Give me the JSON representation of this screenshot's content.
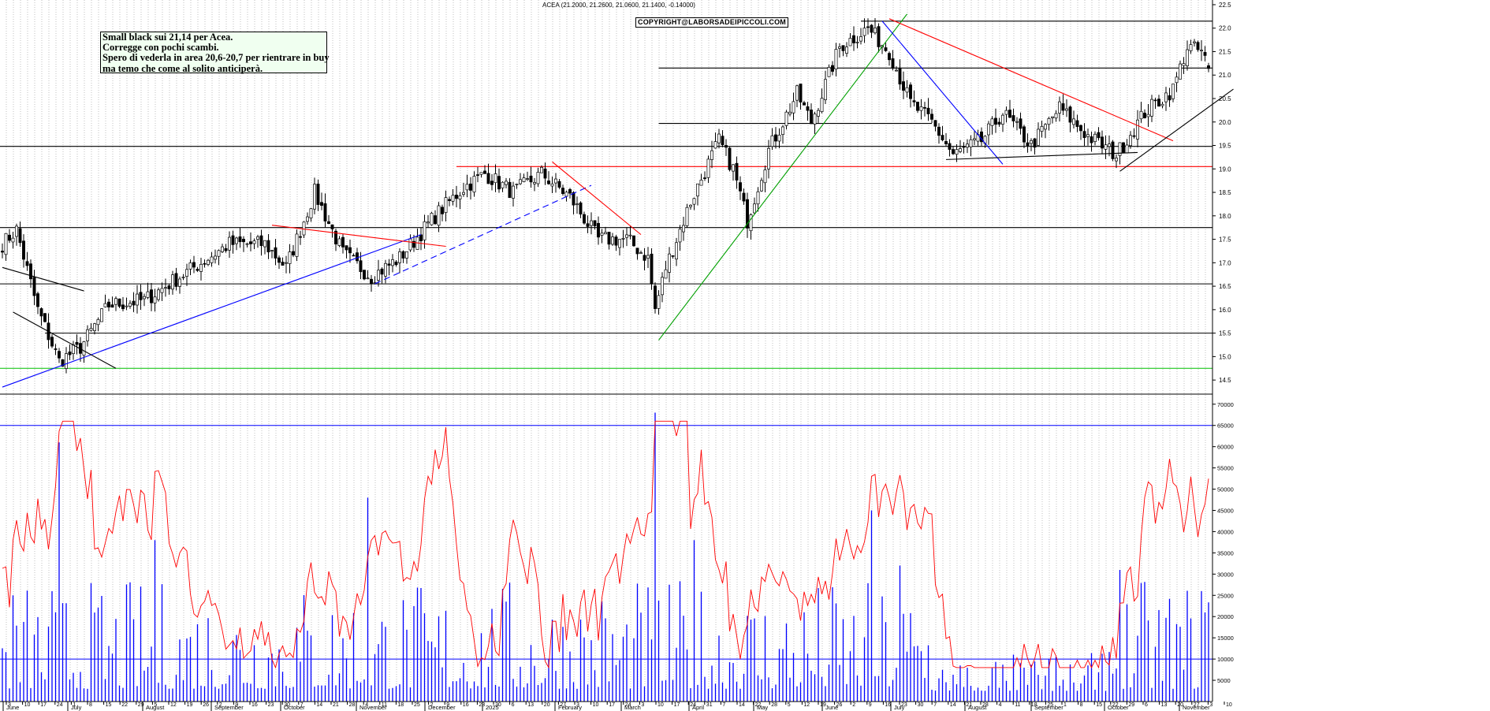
{
  "header": "ACEA (21.2000, 21.2600, 21.0600, 21.1400, -0.14000)",
  "copyright": "COPYRIGHT@LABORSADEIPICCOLI.COM",
  "note": [
    "Small black sui 21,14 per Acea.",
    "Corregge con pochi scambi.",
    "Spero di vederla in area 20,6-20,7 per rientrare in buy",
    "ma temo che come al solito anticiperà."
  ],
  "chart_data": [
    {
      "type": "candlestick",
      "series_name": "ACEA",
      "last_bar": {
        "open": 21.2,
        "high": 21.26,
        "low": 21.06,
        "close": 21.14,
        "change": -0.14
      },
      "ylim": [
        14.2,
        22.6
      ],
      "yticks": [
        14.5,
        15.0,
        15.5,
        16.0,
        16.5,
        17.0,
        17.5,
        18.0,
        18.5,
        19.0,
        19.5,
        20.0,
        20.5,
        21.0,
        21.5,
        22.0,
        22.5
      ],
      "ytick_labels": [
        "14.5",
        "15.0",
        "15.5",
        "16.0",
        "16.5",
        "17.0",
        "17.5",
        "18.0",
        "18.5",
        "19.0",
        "19.5",
        "20.0",
        "20.5",
        "21.0",
        "21.5",
        "22.0",
        "22.5"
      ],
      "grid": true,
      "anchors": [
        {
          "bar": 0,
          "price": 17.4
        },
        {
          "bar": 4,
          "price": 17.7
        },
        {
          "bar": 10,
          "price": 16.0
        },
        {
          "bar": 16,
          "price": 14.9
        },
        {
          "bar": 22,
          "price": 15.2
        },
        {
          "bar": 30,
          "price": 16.1
        },
        {
          "bar": 40,
          "price": 16.2
        },
        {
          "bar": 52,
          "price": 16.8
        },
        {
          "bar": 64,
          "price": 17.4
        },
        {
          "bar": 74,
          "price": 17.4
        },
        {
          "bar": 80,
          "price": 16.9
        },
        {
          "bar": 88,
          "price": 18.5
        },
        {
          "bar": 96,
          "price": 17.2
        },
        {
          "bar": 104,
          "price": 16.7
        },
        {
          "bar": 112,
          "price": 17.1
        },
        {
          "bar": 122,
          "price": 18.0
        },
        {
          "bar": 130,
          "price": 18.6
        },
        {
          "bar": 136,
          "price": 18.9
        },
        {
          "bar": 144,
          "price": 18.5
        },
        {
          "bar": 152,
          "price": 18.9
        },
        {
          "bar": 160,
          "price": 18.4
        },
        {
          "bar": 168,
          "price": 17.5
        },
        {
          "bar": 176,
          "price": 17.5
        },
        {
          "bar": 182,
          "price": 17.1
        },
        {
          "bar": 184,
          "price": 16.0
        },
        {
          "bar": 187,
          "price": 16.9
        },
        {
          "bar": 194,
          "price": 18.3
        },
        {
          "bar": 202,
          "price": 19.6
        },
        {
          "bar": 206,
          "price": 19.0
        },
        {
          "bar": 210,
          "price": 17.9
        },
        {
          "bar": 216,
          "price": 19.4
        },
        {
          "bar": 224,
          "price": 20.6
        },
        {
          "bar": 228,
          "price": 20.0
        },
        {
          "bar": 236,
          "price": 21.6
        },
        {
          "bar": 244,
          "price": 22.0
        },
        {
          "bar": 250,
          "price": 21.5
        },
        {
          "bar": 256,
          "price": 20.4
        },
        {
          "bar": 262,
          "price": 20.0
        },
        {
          "bar": 268,
          "price": 19.3
        },
        {
          "bar": 276,
          "price": 19.6
        },
        {
          "bar": 282,
          "price": 20.2
        },
        {
          "bar": 290,
          "price": 19.5
        },
        {
          "bar": 298,
          "price": 20.3
        },
        {
          "bar": 306,
          "price": 19.7
        },
        {
          "bar": 314,
          "price": 19.3
        },
        {
          "bar": 322,
          "price": 20.2
        },
        {
          "bar": 330,
          "price": 20.7
        },
        {
          "bar": 334,
          "price": 21.6
        },
        {
          "bar": 338,
          "price": 21.5
        },
        {
          "bar": 340,
          "price": 21.14
        }
      ],
      "horizontal_levels": [
        {
          "price": 22.15,
          "color": "#000000",
          "from_bar": 242
        },
        {
          "price": 21.15,
          "color": "#000000",
          "from_bar": 185
        },
        {
          "price": 19.97,
          "color": "#000000",
          "from_bar": 185,
          "to_bar": 262
        },
        {
          "price": 19.48,
          "color": "#000000"
        },
        {
          "price": 19.05,
          "color": "#ff0000",
          "from_bar": 128
        },
        {
          "price": 17.75,
          "color": "#000000"
        },
        {
          "price": 16.55,
          "color": "#000000"
        },
        {
          "price": 15.5,
          "color": "#000000",
          "from_bar": 12
        },
        {
          "price": 14.75,
          "color": "#00c000"
        }
      ],
      "trendlines": [
        {
          "color": "#0000ff",
          "from": [
            0,
            14.35
          ],
          "to": [
            118,
            17.6
          ]
        },
        {
          "color": "#0000ff",
          "dash": true,
          "from": [
            105,
            16.55
          ],
          "to": [
            166,
            18.65
          ]
        },
        {
          "color": "#ff0000",
          "from": [
            76,
            17.8
          ],
          "to": [
            125,
            17.35
          ]
        },
        {
          "color": "#ff0000",
          "from": [
            155,
            19.15
          ],
          "to": [
            180,
            17.6
          ]
        },
        {
          "color": "#00a000",
          "from": [
            185,
            15.35
          ],
          "to": [
            255,
            22.3
          ]
        },
        {
          "color": "#0000ff",
          "from": [
            248,
            22.15
          ],
          "to": [
            282,
            19.1
          ]
        },
        {
          "color": "#ff0000",
          "from": [
            250,
            22.2
          ],
          "to": [
            330,
            19.6
          ]
        },
        {
          "color": "#000000",
          "from": [
            266,
            19.2
          ],
          "to": [
            320,
            19.35
          ]
        },
        {
          "color": "#000000",
          "from": [
            315,
            18.95
          ],
          "to": [
            347,
            20.7
          ]
        },
        {
          "color": "#000000",
          "from": [
            0,
            16.9
          ],
          "to": [
            23,
            16.4
          ]
        },
        {
          "color": "#000000",
          "from": [
            3,
            15.95
          ],
          "to": [
            32,
            14.75
          ]
        }
      ]
    },
    {
      "type": "bar",
      "series_name": "Volume",
      "ylim": [
        0,
        72000
      ],
      "yticks": [
        5000,
        10000,
        15000,
        20000,
        25000,
        30000,
        35000,
        40000,
        45000,
        50000,
        55000,
        60000,
        65000,
        70000
      ],
      "ytick_labels": [
        "5000",
        "10000",
        "15000",
        "20000",
        "25000",
        "30000",
        "35000",
        "40000",
        "45000",
        "50000",
        "55000",
        "60000",
        "65000",
        "70000"
      ],
      "reference_lines": [
        65000,
        10000
      ],
      "spikes": [
        {
          "bar": 16,
          "value": 61000
        },
        {
          "bar": 43,
          "value": 38000
        },
        {
          "bar": 103,
          "value": 48000
        },
        {
          "bar": 184,
          "value": 68000
        },
        {
          "bar": 195,
          "value": 38000
        },
        {
          "bar": 245,
          "value": 45000
        },
        {
          "bar": 253,
          "value": 32000
        },
        {
          "bar": 315,
          "value": 31000
        },
        {
          "bar": 338,
          "value": 26000
        }
      ],
      "avg_line": {
        "color": "#ff0000",
        "min": 8000,
        "max": 66000
      }
    }
  ],
  "x_axis": {
    "day_ticks": [
      "3",
      "10",
      "17",
      "24",
      "1",
      "8",
      "15",
      "22",
      "29",
      "5",
      "12",
      "19",
      "26",
      "2",
      "9",
      "16",
      "23",
      "30",
      "7",
      "14",
      "21",
      "28",
      "4",
      "11",
      "18",
      "25",
      "2",
      "9",
      "16",
      "23",
      "30",
      "6",
      "13",
      "20",
      "27",
      "3",
      "10",
      "17",
      "24",
      "3",
      "10",
      "17",
      "24",
      "31",
      "7",
      "14",
      "22",
      "28",
      "5",
      "12",
      "19",
      "26",
      "2",
      "9",
      "16",
      "23",
      "30",
      "7",
      "14",
      "21",
      "28",
      "4",
      "11",
      "18",
      "25",
      "1",
      "8",
      "15",
      "22",
      "29",
      "6",
      "13",
      "20",
      "27",
      "3",
      "10"
    ],
    "months": [
      "June",
      "July",
      "August",
      "September",
      "October",
      "November",
      "December",
      "2025",
      "February",
      "March",
      "April",
      "May",
      "June",
      "July",
      "August",
      "September",
      "October",
      "November"
    ],
    "month_x": [
      8,
      90,
      185,
      272,
      360,
      456,
      543,
      616,
      708,
      792,
      878,
      960,
      1047,
      1134,
      1228,
      1312,
      1405,
      1500
    ]
  },
  "colors": {
    "candle": "#000000",
    "volume": "#0000ff",
    "avg": "#ff0000",
    "grid": "#9a9a9a"
  }
}
